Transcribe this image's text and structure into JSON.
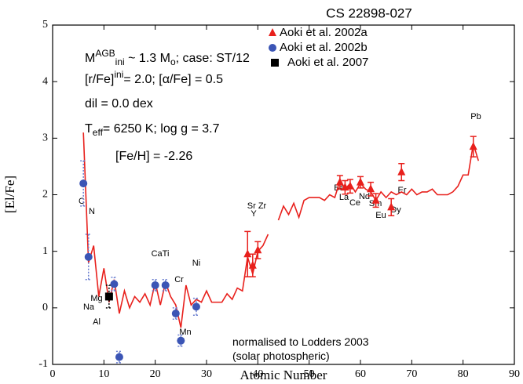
{
  "chart_data": {
    "type": "scatter",
    "title": "CS 22898-027",
    "x_label": "Atomic Number",
    "y_label": "[El/Fe]",
    "xlim": [
      0,
      90
    ],
    "xticks": [
      0,
      10,
      20,
      30,
      40,
      50,
      60,
      70,
      80,
      90
    ],
    "ylim": [
      -1,
      5
    ],
    "yticks": [
      -1,
      0,
      1,
      2,
      3,
      4,
      5
    ],
    "annotations": [
      [
        {
          "text": "M"
        },
        {
          "text": "AGB",
          "shift": "sup"
        },
        {
          "text": "ini",
          "shift": "sub"
        },
        {
          "text": " ~ 1.3 M"
        },
        {
          "text": "o",
          "shift": "sub"
        },
        {
          "text": ";  case: ST/12"
        }
      ],
      [
        {
          "text": "[r/Fe]"
        },
        {
          "text": "ini",
          "shift": "sup"
        },
        {
          "text": "= 2.0; [α/Fe] = 0.5"
        }
      ],
      [
        {
          "text": "dil = 0.0 dex"
        }
      ],
      [
        {
          "text": "T"
        },
        {
          "text": "eff",
          "shift": "sub"
        },
        {
          "text": "= 6250 K; log g = 3.7"
        }
      ],
      [
        {
          "text": "[Fe/H] = -2.26"
        }
      ],
      [
        {
          "text": "normalised to Lodders 2003"
        }
      ],
      [
        {
          "text": "(solar photospheric)"
        }
      ]
    ],
    "element_labels": [
      "C",
      "N",
      "Na",
      "Mg",
      "Al",
      "CaTi",
      "Cr",
      "Mn",
      "Ni",
      "Sr Zr",
      "Y",
      "Ba",
      "La",
      "Ce",
      "Nd",
      "Sm",
      "Eu",
      "Er",
      "Dy",
      "Pb"
    ],
    "model": {
      "type": "line",
      "color": "#e8201c",
      "x": [
        6,
        7,
        8,
        9,
        10,
        11,
        12,
        13,
        14,
        15,
        16,
        17,
        18,
        19,
        20,
        21,
        22,
        23,
        24,
        25,
        26,
        27,
        28,
        29,
        30,
        31,
        32,
        33,
        34,
        35,
        36,
        37,
        38,
        39,
        40,
        41,
        42,
        43,
        44,
        45,
        46,
        47,
        48,
        49,
        50,
        51,
        52,
        53,
        54,
        55,
        56,
        57,
        58,
        59,
        60,
        61,
        62,
        63,
        64,
        65,
        66,
        67,
        68,
        69,
        70,
        71,
        72,
        73,
        74,
        75,
        76,
        77,
        78,
        79,
        80,
        81,
        82,
        83
      ],
      "values": [
        3.1,
        0.8,
        1.1,
        0.2,
        0.7,
        0.1,
        0.5,
        -0.1,
        0.3,
        0.0,
        0.2,
        0.1,
        0.25,
        0.05,
        0.45,
        0.05,
        0.45,
        0.2,
        0.05,
        -0.35,
        0.4,
        0.05,
        0.15,
        0.1,
        0.3,
        0.1,
        0.1,
        0.1,
        0.25,
        0.15,
        0.35,
        0.3,
        0.9,
        0.6,
        1.0,
        1.1,
        1.3,
        null,
        1.55,
        1.8,
        1.65,
        1.85,
        1.6,
        1.9,
        1.95,
        1.95,
        1.95,
        1.9,
        2.0,
        1.95,
        2.25,
        2.1,
        2.2,
        2.05,
        2.2,
        2.1,
        2.05,
        1.9,
        2.05,
        1.95,
        2.05,
        2.0,
        2.05,
        2.0,
        2.1,
        2.0,
        2.05,
        2.05,
        2.1,
        2.0,
        2.0,
        2.0,
        2.05,
        2.15,
        2.35,
        2.35,
        2.9,
        2.6
      ]
    },
    "series": [
      {
        "name": "Aoki et al. 2002a",
        "marker": "triangle",
        "color": "#e8201c",
        "x": [
          38,
          39,
          40,
          56,
          57,
          58,
          60,
          62,
          63,
          66,
          68,
          82
        ],
        "values": [
          0.95,
          0.75,
          1.02,
          2.22,
          2.13,
          2.15,
          2.22,
          2.1,
          1.9,
          1.78,
          2.4,
          2.85
        ],
        "errors": [
          0.4,
          0.2,
          0.15,
          0.12,
          0.12,
          0.12,
          0.1,
          0.12,
          0.12,
          0.15,
          0.15,
          0.18
        ]
      },
      {
        "name": "Aoki et al. 2002b",
        "marker": "circle",
        "color": "#3b55b5",
        "x": [
          6,
          7,
          12,
          13,
          20,
          22,
          24,
          25,
          28
        ],
        "values": [
          2.2,
          0.9,
          0.42,
          -0.87,
          0.4,
          0.4,
          -0.1,
          -0.58,
          0.02
        ],
        "errors": [
          0.4,
          0.4,
          0.12,
          0.1,
          0.1,
          0.1,
          0.1,
          0.1,
          0.15
        ]
      },
      {
        "name": "Aoki et al. 2007",
        "marker": "square",
        "color": "#000000",
        "x": [
          11
        ],
        "values": [
          0.2
        ],
        "errors": [
          0.2
        ]
      }
    ]
  }
}
